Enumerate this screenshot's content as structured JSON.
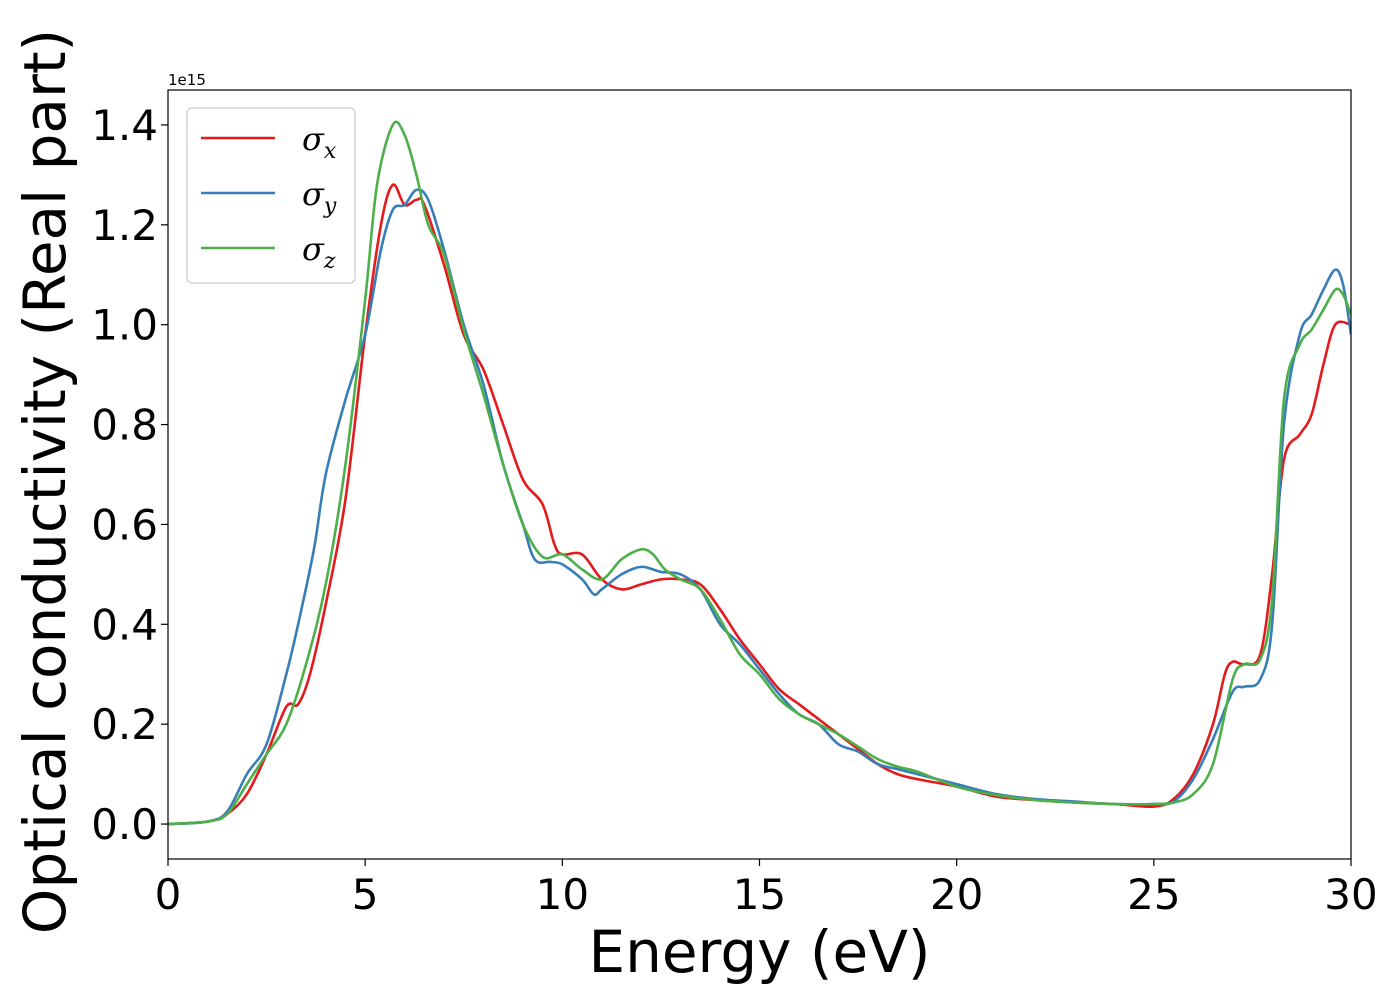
{
  "chart_data": {
    "type": "line",
    "xlabel": "Energy (eV)",
    "ylabel": "Optical conductivity (Real part)",
    "y_offset_label": "1e15",
    "xlim": [
      0,
      30
    ],
    "ylim": [
      -0.07,
      1.47
    ],
    "x_ticks": [
      0,
      5,
      10,
      15,
      20,
      25,
      30
    ],
    "x_tick_labels": [
      "0",
      "5",
      "10",
      "15",
      "20",
      "25",
      "30"
    ],
    "y_ticks": [
      0.0,
      0.2,
      0.4,
      0.6,
      0.8,
      1.0,
      1.2,
      1.4
    ],
    "y_tick_labels": [
      "0.0",
      "0.2",
      "0.4",
      "0.6",
      "0.8",
      "1.0",
      "1.2",
      "1.4"
    ],
    "grid": false,
    "legend_position": "top-left",
    "series": [
      {
        "name": "σx",
        "legend_base": "σ",
        "legend_sub": "x",
        "color": "#e41a1c",
        "points": [
          [
            0,
            0
          ],
          [
            1,
            0.005
          ],
          [
            1.5,
            0.02
          ],
          [
            2,
            0.06
          ],
          [
            2.5,
            0.14
          ],
          [
            3,
            0.235
          ],
          [
            3.3,
            0.24
          ],
          [
            3.6,
            0.3
          ],
          [
            4,
            0.44
          ],
          [
            4.5,
            0.65
          ],
          [
            5,
            0.98
          ],
          [
            5.4,
            1.2
          ],
          [
            5.7,
            1.28
          ],
          [
            6,
            1.24
          ],
          [
            6.3,
            1.25
          ],
          [
            6.5,
            1.24
          ],
          [
            7,
            1.12
          ],
          [
            7.5,
            0.98
          ],
          [
            8,
            0.91
          ],
          [
            8.5,
            0.8
          ],
          [
            9,
            0.69
          ],
          [
            9.5,
            0.64
          ],
          [
            9.8,
            0.56
          ],
          [
            10,
            0.54
          ],
          [
            10.5,
            0.54
          ],
          [
            11,
            0.49
          ],
          [
            11.5,
            0.47
          ],
          [
            12,
            0.48
          ],
          [
            12.5,
            0.49
          ],
          [
            13,
            0.49
          ],
          [
            13.5,
            0.48
          ],
          [
            14,
            0.43
          ],
          [
            14.5,
            0.37
          ],
          [
            15,
            0.32
          ],
          [
            15.5,
            0.27
          ],
          [
            16,
            0.24
          ],
          [
            16.5,
            0.21
          ],
          [
            17,
            0.18
          ],
          [
            17.5,
            0.15
          ],
          [
            18,
            0.12
          ],
          [
            18.5,
            0.1
          ],
          [
            19,
            0.09
          ],
          [
            20,
            0.075
          ],
          [
            21,
            0.055
          ],
          [
            22,
            0.048
          ],
          [
            23,
            0.043
          ],
          [
            24,
            0.04
          ],
          [
            25,
            0.035
          ],
          [
            25.5,
            0.05
          ],
          [
            26,
            0.1
          ],
          [
            26.5,
            0.2
          ],
          [
            26.8,
            0.3
          ],
          [
            27,
            0.325
          ],
          [
            27.3,
            0.32
          ],
          [
            27.7,
            0.34
          ],
          [
            28,
            0.5
          ],
          [
            28.3,
            0.73
          ],
          [
            28.7,
            0.78
          ],
          [
            29,
            0.82
          ],
          [
            29.3,
            0.92
          ],
          [
            29.6,
            1.0
          ],
          [
            30,
            1.0
          ]
        ]
      },
      {
        "name": "σy",
        "legend_base": "σ",
        "legend_sub": "y",
        "color": "#377eb8",
        "points": [
          [
            0,
            0
          ],
          [
            1,
            0.005
          ],
          [
            1.5,
            0.025
          ],
          [
            2,
            0.1
          ],
          [
            2.5,
            0.16
          ],
          [
            3,
            0.3
          ],
          [
            3.3,
            0.4
          ],
          [
            3.7,
            0.55
          ],
          [
            4,
            0.7
          ],
          [
            4.5,
            0.85
          ],
          [
            5,
            0.98
          ],
          [
            5.4,
            1.15
          ],
          [
            5.7,
            1.23
          ],
          [
            6,
            1.24
          ],
          [
            6.3,
            1.27
          ],
          [
            6.6,
            1.25
          ],
          [
            7,
            1.15
          ],
          [
            7.5,
            1.0
          ],
          [
            8,
            0.88
          ],
          [
            8.5,
            0.72
          ],
          [
            9,
            0.6
          ],
          [
            9.3,
            0.53
          ],
          [
            9.7,
            0.525
          ],
          [
            10,
            0.52
          ],
          [
            10.5,
            0.49
          ],
          [
            10.8,
            0.46
          ],
          [
            11,
            0.47
          ],
          [
            11.5,
            0.5
          ],
          [
            12,
            0.515
          ],
          [
            12.5,
            0.505
          ],
          [
            13,
            0.5
          ],
          [
            13.5,
            0.47
          ],
          [
            14,
            0.4
          ],
          [
            14.5,
            0.36
          ],
          [
            15,
            0.31
          ],
          [
            15.5,
            0.26
          ],
          [
            16,
            0.22
          ],
          [
            16.5,
            0.2
          ],
          [
            17,
            0.16
          ],
          [
            17.5,
            0.145
          ],
          [
            18,
            0.12
          ],
          [
            18.5,
            0.11
          ],
          [
            19,
            0.1
          ],
          [
            20,
            0.08
          ],
          [
            21,
            0.06
          ],
          [
            22,
            0.05
          ],
          [
            23,
            0.045
          ],
          [
            24,
            0.04
          ],
          [
            25,
            0.04
          ],
          [
            25.5,
            0.045
          ],
          [
            26,
            0.09
          ],
          [
            26.5,
            0.17
          ],
          [
            27,
            0.265
          ],
          [
            27.3,
            0.275
          ],
          [
            27.7,
            0.29
          ],
          [
            28,
            0.4
          ],
          [
            28.3,
            0.8
          ],
          [
            28.7,
            0.98
          ],
          [
            29,
            1.02
          ],
          [
            29.3,
            1.07
          ],
          [
            29.6,
            1.11
          ],
          [
            29.8,
            1.08
          ],
          [
            30,
            0.98
          ]
        ]
      },
      {
        "name": "σz",
        "legend_base": "σ",
        "legend_sub": "z",
        "color": "#4daf4a",
        "points": [
          [
            0,
            0
          ],
          [
            1,
            0.005
          ],
          [
            1.5,
            0.02
          ],
          [
            2,
            0.08
          ],
          [
            2.5,
            0.14
          ],
          [
            3,
            0.2
          ],
          [
            3.5,
            0.32
          ],
          [
            4,
            0.48
          ],
          [
            4.5,
            0.72
          ],
          [
            5,
            1.05
          ],
          [
            5.3,
            1.28
          ],
          [
            5.7,
            1.4
          ],
          [
            6,
            1.38
          ],
          [
            6.3,
            1.3
          ],
          [
            6.6,
            1.2
          ],
          [
            7,
            1.14
          ],
          [
            7.5,
            0.99
          ],
          [
            8,
            0.86
          ],
          [
            8.5,
            0.72
          ],
          [
            9,
            0.6
          ],
          [
            9.5,
            0.535
          ],
          [
            10,
            0.54
          ],
          [
            10.5,
            0.51
          ],
          [
            11,
            0.49
          ],
          [
            11.5,
            0.53
          ],
          [
            12,
            0.55
          ],
          [
            12.3,
            0.54
          ],
          [
            12.6,
            0.51
          ],
          [
            13,
            0.49
          ],
          [
            13.5,
            0.47
          ],
          [
            14,
            0.41
          ],
          [
            14.5,
            0.34
          ],
          [
            15,
            0.3
          ],
          [
            15.5,
            0.25
          ],
          [
            16,
            0.22
          ],
          [
            16.5,
            0.2
          ],
          [
            17,
            0.18
          ],
          [
            17.5,
            0.155
          ],
          [
            18,
            0.13
          ],
          [
            18.5,
            0.115
          ],
          [
            19,
            0.105
          ],
          [
            20,
            0.075
          ],
          [
            21,
            0.058
          ],
          [
            22,
            0.048
          ],
          [
            23,
            0.043
          ],
          [
            24,
            0.04
          ],
          [
            25,
            0.04
          ],
          [
            25.5,
            0.043
          ],
          [
            26,
            0.06
          ],
          [
            26.5,
            0.12
          ],
          [
            27,
            0.29
          ],
          [
            27.3,
            0.32
          ],
          [
            27.7,
            0.33
          ],
          [
            28,
            0.45
          ],
          [
            28.3,
            0.85
          ],
          [
            28.7,
            0.96
          ],
          [
            29,
            0.99
          ],
          [
            29.3,
            1.03
          ],
          [
            29.6,
            1.07
          ],
          [
            29.8,
            1.06
          ],
          [
            30,
            1.02
          ]
        ]
      }
    ]
  }
}
